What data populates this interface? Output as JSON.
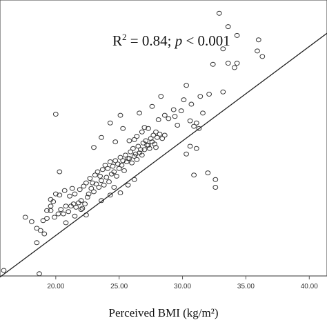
{
  "chart_data": {
    "type": "scatter",
    "title": "",
    "xlabel": "Perceived BMI (kg/m²)",
    "ylabel": "",
    "xlim": [
      15.6,
      41.4
    ],
    "ylim": [
      15.6,
      40.5
    ],
    "xticks": [
      "20.00",
      "25.00",
      "30.00",
      "35.00",
      "40.00"
    ],
    "annotation": {
      "r2_label": "R",
      "r2_sup": "2",
      "r2_value": " = 0.84; ",
      "p_label": "p",
      "p_value": " < 0.001"
    },
    "fit_line": {
      "x": [
        15.6,
        41.4
      ],
      "y": [
        15.5,
        37.5
      ]
    },
    "marker_color": "#333333",
    "line_color": "#222222",
    "grid": false,
    "points": [
      [
        15.9,
        16.1
      ],
      [
        18.7,
        15.8
      ],
      [
        17.6,
        20.9
      ],
      [
        18.1,
        20.5
      ],
      [
        18.5,
        19.9
      ],
      [
        18.8,
        19.7
      ],
      [
        19.0,
        20.6
      ],
      [
        19.3,
        20.8
      ],
      [
        19.6,
        21.5
      ],
      [
        19.9,
        20.9
      ],
      [
        20.2,
        21.2
      ],
      [
        20.4,
        21.6
      ],
      [
        20.6,
        21.2
      ],
      [
        20.8,
        21.9
      ],
      [
        21.0,
        21.4
      ],
      [
        21.2,
        21.9
      ],
      [
        21.4,
        22.1
      ],
      [
        21.6,
        21.8
      ],
      [
        21.8,
        22.2
      ],
      [
        22.0,
        22.4
      ],
      [
        22.1,
        21.7
      ],
      [
        22.3,
        22.1
      ],
      [
        22.5,
        22.7
      ],
      [
        22.6,
        23.0
      ],
      [
        22.8,
        23.5
      ],
      [
        23.0,
        23.2
      ],
      [
        23.2,
        23.9
      ],
      [
        23.4,
        23.6
      ],
      [
        23.6,
        24.2
      ],
      [
        23.8,
        23.8
      ],
      [
        24.0,
        24.5
      ],
      [
        24.2,
        24.1
      ],
      [
        24.4,
        24.8
      ],
      [
        24.6,
        25.0
      ],
      [
        24.8,
        24.6
      ],
      [
        25.0,
        25.3
      ],
      [
        25.2,
        25.6
      ],
      [
        25.4,
        25.1
      ],
      [
        25.6,
        25.9
      ],
      [
        25.8,
        26.2
      ],
      [
        26.0,
        25.8
      ],
      [
        26.2,
        26.4
      ],
      [
        26.4,
        26.1
      ],
      [
        26.6,
        26.7
      ],
      [
        26.8,
        26.5
      ],
      [
        27.0,
        27.0
      ],
      [
        27.2,
        27.4
      ],
      [
        27.4,
        27.1
      ],
      [
        27.6,
        27.7
      ],
      [
        27.8,
        27.5
      ],
      [
        28.0,
        28.1
      ],
      [
        28.2,
        28.4
      ],
      [
        28.4,
        28.0
      ],
      [
        28.6,
        28.3
      ],
      [
        19.3,
        21.5
      ],
      [
        19.6,
        21.9
      ],
      [
        19.8,
        22.3
      ],
      [
        20.0,
        23.0
      ],
      [
        19.6,
        22.5
      ],
      [
        20.3,
        22.9
      ],
      [
        20.7,
        23.3
      ],
      [
        21.1,
        22.8
      ],
      [
        21.3,
        23.5
      ],
      [
        21.5,
        23.0
      ],
      [
        21.9,
        23.4
      ],
      [
        22.2,
        23.7
      ],
      [
        22.4,
        24.0
      ],
      [
        22.7,
        24.4
      ],
      [
        22.9,
        24.0
      ],
      [
        23.1,
        24.7
      ],
      [
        23.3,
        25.0
      ],
      [
        23.5,
        24.6
      ],
      [
        23.7,
        25.2
      ],
      [
        23.9,
        25.6
      ],
      [
        24.1,
        25.3
      ],
      [
        24.3,
        25.9
      ],
      [
        24.5,
        25.5
      ],
      [
        24.7,
        26.0
      ],
      [
        24.9,
        25.7
      ],
      [
        25.1,
        26.3
      ],
      [
        25.3,
        26.0
      ],
      [
        25.5,
        26.5
      ],
      [
        25.7,
        26.2
      ],
      [
        25.9,
        26.8
      ],
      [
        26.1,
        27.1
      ],
      [
        26.3,
        26.6
      ],
      [
        26.5,
        27.3
      ],
      [
        26.7,
        27.0
      ],
      [
        26.9,
        27.6
      ],
      [
        27.1,
        27.8
      ],
      [
        27.3,
        27.4
      ],
      [
        27.5,
        28.0
      ],
      [
        27.7,
        28.3
      ],
      [
        27.9,
        28.6
      ],
      [
        18.5,
        18.6
      ],
      [
        19.1,
        19.4
      ],
      [
        21.5,
        21.0
      ],
      [
        22.0,
        21.6
      ],
      [
        23.6,
        22.4
      ],
      [
        24.3,
        22.9
      ],
      [
        25.1,
        23.1
      ],
      [
        25.7,
        23.8
      ],
      [
        26.2,
        24.3
      ],
      [
        24.6,
        23.6
      ],
      [
        22.4,
        21.1
      ],
      [
        20.8,
        20.4
      ],
      [
        20.3,
        25.0
      ],
      [
        20.0,
        30.2
      ],
      [
        23.0,
        27.2
      ],
      [
        23.6,
        28.1
      ],
      [
        24.3,
        29.4
      ],
      [
        25.1,
        30.1
      ],
      [
        25.3,
        28.9
      ],
      [
        25.8,
        27.8
      ],
      [
        26.2,
        27.9
      ],
      [
        27.3,
        28.9
      ],
      [
        26.6,
        30.3
      ],
      [
        27.6,
        30.9
      ],
      [
        28.3,
        31.8
      ],
      [
        28.6,
        30.1
      ],
      [
        29.3,
        30.6
      ],
      [
        29.6,
        29.2
      ],
      [
        29.9,
        30.5
      ],
      [
        30.1,
        31.5
      ],
      [
        30.3,
        32.8
      ],
      [
        30.6,
        29.6
      ],
      [
        30.9,
        29.1
      ],
      [
        31.1,
        29.4
      ],
      [
        31.3,
        28.9
      ],
      [
        31.6,
        30.3
      ],
      [
        30.6,
        27.3
      ],
      [
        31.1,
        27.1
      ],
      [
        30.3,
        26.6
      ],
      [
        32.0,
        24.9
      ],
      [
        32.6,
        23.6
      ],
      [
        32.6,
        24.3
      ],
      [
        30.9,
        24.7
      ],
      [
        32.4,
        34.7
      ],
      [
        33.2,
        36.1
      ],
      [
        33.6,
        34.8
      ],
      [
        34.1,
        34.4
      ],
      [
        34.3,
        34.8
      ],
      [
        35.9,
        35.9
      ],
      [
        36.3,
        35.4
      ],
      [
        36.0,
        36.9
      ],
      [
        34.3,
        37.3
      ],
      [
        33.6,
        38.1
      ],
      [
        32.9,
        39.3
      ],
      [
        27.0,
        29.0
      ],
      [
        26.8,
        28.6
      ],
      [
        28.9,
        29.8
      ],
      [
        29.4,
        30.0
      ],
      [
        30.7,
        31.1
      ],
      [
        31.4,
        31.8
      ],
      [
        32.1,
        32.0
      ],
      [
        33.2,
        32.2
      ],
      [
        28.1,
        29.7
      ],
      [
        24.7,
        27.7
      ],
      [
        27.9,
        27.2
      ],
      [
        26.4,
        28.2
      ]
    ]
  }
}
